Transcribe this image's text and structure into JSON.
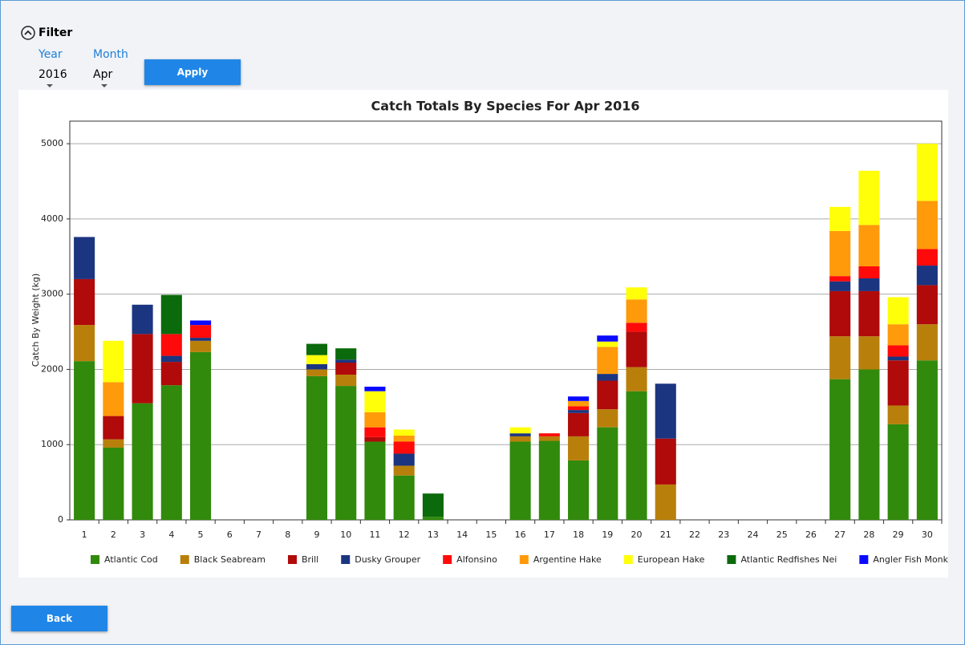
{
  "filter": {
    "title": "Filter",
    "year_label": "Year",
    "year": "2016",
    "month_label": "Month",
    "month": "Apr",
    "apply": "Apply"
  },
  "back": "Back",
  "chart_data": {
    "type": "bar",
    "stacked": true,
    "title": "Catch Totals By Species For Apr 2016",
    "y_label": "Catch By Weight (kg)",
    "categories": [
      "1",
      "2",
      "3",
      "4",
      "5",
      "6",
      "7",
      "8",
      "9",
      "10",
      "11",
      "12",
      "13",
      "14",
      "15",
      "16",
      "17",
      "18",
      "19",
      "20",
      "21",
      "22",
      "23",
      "24",
      "25",
      "26",
      "27",
      "28",
      "29",
      "30"
    ],
    "series": [
      {
        "name": "Atlantic Cod",
        "color": "#318a0b",
        "values": [
          2110,
          960,
          1550,
          1790,
          2230,
          0,
          0,
          0,
          1910,
          1780,
          1040,
          590,
          40,
          0,
          0,
          1040,
          1050,
          790,
          1230,
          1710,
          0,
          0,
          0,
          0,
          0,
          0,
          1870,
          2000,
          1270,
          2120
        ]
      },
      {
        "name": "Black Seabream",
        "color": "#b8800b",
        "values": [
          480,
          110,
          0,
          0,
          150,
          0,
          0,
          0,
          90,
          150,
          0,
          130,
          0,
          0,
          0,
          70,
          60,
          320,
          240,
          320,
          470,
          0,
          0,
          0,
          0,
          0,
          570,
          440,
          250,
          480
        ]
      },
      {
        "name": "Brill",
        "color": "#b00a0a",
        "values": [
          610,
          310,
          920,
          310,
          0,
          0,
          0,
          0,
          0,
          160,
          60,
          0,
          0,
          0,
          0,
          0,
          0,
          310,
          380,
          470,
          610,
          0,
          0,
          0,
          0,
          0,
          600,
          600,
          600,
          520
        ]
      },
      {
        "name": "Dusky Grouper",
        "color": "#1b3580",
        "values": [
          560,
          0,
          390,
          80,
          40,
          0,
          0,
          0,
          70,
          40,
          0,
          160,
          0,
          0,
          0,
          40,
          0,
          40,
          90,
          0,
          730,
          0,
          0,
          0,
          0,
          0,
          130,
          170,
          50,
          260
        ]
      },
      {
        "name": "Alfonsino",
        "color": "#ff0a0a",
        "values": [
          0,
          0,
          0,
          290,
          170,
          0,
          0,
          0,
          0,
          0,
          130,
          160,
          0,
          0,
          0,
          0,
          40,
          50,
          0,
          120,
          0,
          0,
          0,
          0,
          0,
          0,
          70,
          160,
          150,
          220
        ]
      },
      {
        "name": "Argentine Hake",
        "color": "#ff9a0a",
        "values": [
          0,
          450,
          0,
          0,
          0,
          0,
          0,
          0,
          0,
          0,
          200,
          80,
          0,
          0,
          0,
          0,
          0,
          70,
          360,
          310,
          0,
          0,
          0,
          0,
          0,
          0,
          600,
          550,
          280,
          640
        ]
      },
      {
        "name": "European Hake",
        "color": "#ffff0a",
        "values": [
          0,
          550,
          0,
          0,
          0,
          0,
          0,
          0,
          120,
          0,
          280,
          80,
          0,
          0,
          0,
          80,
          0,
          0,
          70,
          160,
          0,
          0,
          0,
          0,
          0,
          0,
          320,
          720,
          360,
          760
        ]
      },
      {
        "name": "Atlantic Redfishes Nei",
        "color": "#0b6a0b",
        "values": [
          0,
          0,
          0,
          520,
          0,
          0,
          0,
          0,
          150,
          150,
          0,
          0,
          310,
          0,
          0,
          0,
          0,
          0,
          0,
          0,
          0,
          0,
          0,
          0,
          0,
          0,
          0,
          0,
          0,
          0
        ]
      },
      {
        "name": "Angler Fish Monk",
        "color": "#0a0aff",
        "values": [
          0,
          0,
          0,
          0,
          60,
          0,
          0,
          0,
          0,
          0,
          60,
          0,
          0,
          0,
          0,
          0,
          0,
          60,
          80,
          0,
          0,
          0,
          0,
          0,
          0,
          0,
          0,
          0,
          0,
          0
        ]
      }
    ],
    "ylim": [
      0,
      5300
    ],
    "yticks": [
      0,
      1000,
      2000,
      3000,
      4000,
      5000
    ],
    "grid": true,
    "legend": "bottom"
  }
}
